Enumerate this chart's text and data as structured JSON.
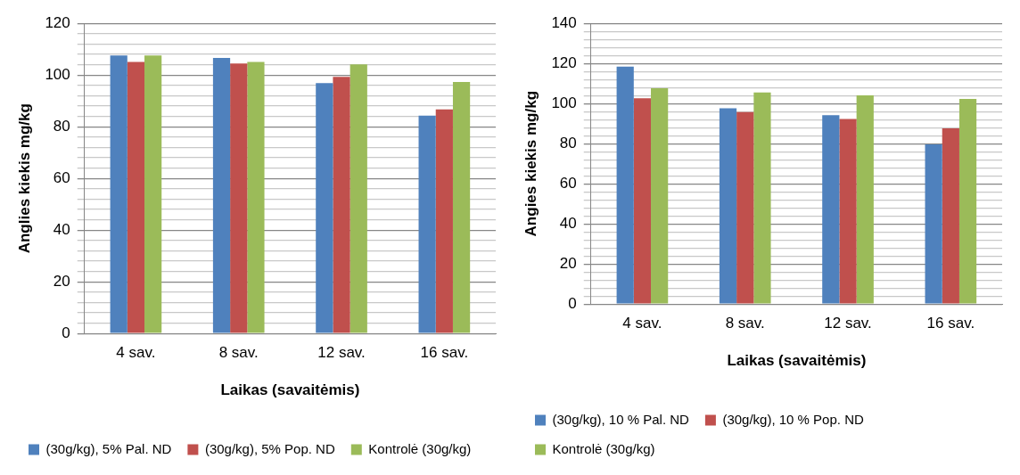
{
  "chart_data": [
    {
      "type": "bar",
      "xlabel": "Laikas (savaitėmis)",
      "ylabel": "Anglies kiekis mg/kg",
      "categories": [
        "4 sav.",
        "8 sav.",
        "12 sav.",
        "16 sav."
      ],
      "series": [
        {
          "name": "(30g/kg), 5% Pal. ND",
          "color": "#4f81bd",
          "values": [
            107.6,
            106.6,
            96.9,
            84.3
          ]
        },
        {
          "name": "(30g/kg), 5% Pop. ND",
          "color": "#c0504d",
          "values": [
            105.1,
            104.5,
            99.3,
            86.7
          ]
        },
        {
          "name": "Kontrolė (30g/kg)",
          "color": "#9bbb59",
          "values": [
            107.6,
            105.1,
            104.1,
            97.3
          ]
        }
      ],
      "ylim": [
        0,
        120
      ],
      "yticks": [
        0,
        {
          "value": 4,
          "label": null
        },
        {
          "value": 8,
          "label": null
        },
        {
          "value": 12,
          "label": null
        },
        {
          "value": 16,
          "label": null
        },
        20,
        {
          "value": 24,
          "label": null
        },
        {
          "value": 28,
          "label": null
        },
        {
          "value": 32,
          "label": null
        },
        {
          "value": 36,
          "label": null
        },
        40,
        {
          "value": 44,
          "label": null
        },
        {
          "value": 48,
          "label": null
        },
        {
          "value": 52,
          "label": null
        },
        {
          "value": 56,
          "label": null
        },
        60,
        {
          "value": 64,
          "label": null
        },
        {
          "value": 68,
          "label": null
        },
        {
          "value": 72,
          "label": null
        },
        {
          "value": 76,
          "label": null
        },
        80,
        {
          "value": 84,
          "label": null
        },
        {
          "value": 88,
          "label": null
        },
        {
          "value": 92,
          "label": null
        },
        {
          "value": 96,
          "label": null
        },
        100,
        {
          "value": 104,
          "label": null
        },
        {
          "value": 108,
          "label": null
        },
        {
          "value": 112,
          "label": null
        },
        {
          "value": 116,
          "label": null
        },
        120
      ],
      "grid": "y",
      "legend": "bottom"
    },
    {
      "type": "bar",
      "xlabel": "Laikas (savaitėmis)",
      "ylabel": "Angies kiekis mg/kg",
      "categories": [
        "4 sav.",
        "8 sav.",
        "12 sav.",
        "16 sav."
      ],
      "series": [
        {
          "name": "(30g/kg), 10 % Pal. ND",
          "color": "#4f81bd",
          "values": [
            118.4,
            97.7,
            94.2,
            79.7
          ]
        },
        {
          "name": "(30g/kg), 10 % Pop. ND",
          "color": "#c0504d",
          "values": [
            102.7,
            95.8,
            92.3,
            87.7
          ]
        },
        {
          "name": "Kontrolė (30g/kg)",
          "color": "#9bbb59",
          "values": [
            107.7,
            105.5,
            104.1,
            102.3
          ]
        }
      ],
      "ylim": [
        0,
        140
      ],
      "yticks": [
        0,
        {
          "value": 4,
          "label": null
        },
        {
          "value": 8,
          "label": null
        },
        {
          "value": 12,
          "label": null
        },
        {
          "value": 16,
          "label": null
        },
        20,
        {
          "value": 24,
          "label": null
        },
        {
          "value": 28,
          "label": null
        },
        {
          "value": 32,
          "label": null
        },
        {
          "value": 36,
          "label": null
        },
        40,
        {
          "value": 44,
          "label": null
        },
        {
          "value": 48,
          "label": null
        },
        {
          "value": 52,
          "label": null
        },
        {
          "value": 56,
          "label": null
        },
        60,
        {
          "value": 64,
          "label": null
        },
        {
          "value": 68,
          "label": null
        },
        {
          "value": 72,
          "label": null
        },
        {
          "value": 76,
          "label": null
        },
        80,
        {
          "value": 84,
          "label": null
        },
        {
          "value": 88,
          "label": null
        },
        {
          "value": 92,
          "label": null
        },
        {
          "value": 96,
          "label": null
        },
        100,
        {
          "value": 104,
          "label": null
        },
        {
          "value": 108,
          "label": null
        },
        {
          "value": 112,
          "label": null
        },
        {
          "value": 116,
          "label": null
        },
        120,
        {
          "value": 124,
          "label": null
        },
        {
          "value": 128,
          "label": null
        },
        {
          "value": 132,
          "label": null
        },
        {
          "value": 136,
          "label": null
        },
        140
      ],
      "grid": "y",
      "legend": "bottom"
    }
  ]
}
